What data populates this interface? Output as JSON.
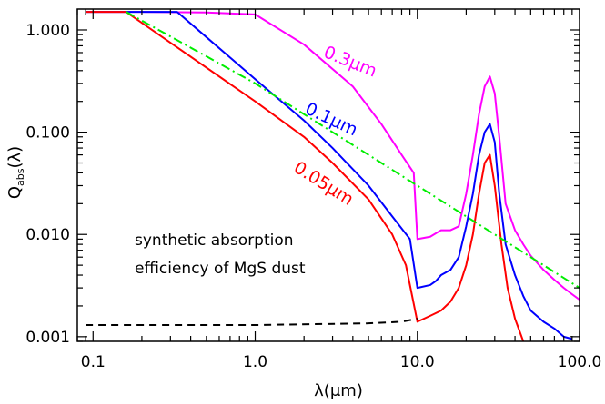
{
  "chart_data": {
    "type": "line",
    "title": "",
    "xlabel": "λ(μm)",
    "ylabel": "Q_abs(λ)",
    "ylabel_main": "Q",
    "ylabel_sub": "abs",
    "ylabel_rest": "(λ)",
    "xscale": "log",
    "yscale": "log",
    "xlim": [
      0.08,
      100
    ],
    "ylim": [
      0.0009,
      1.6
    ],
    "grid": false,
    "xticks": [
      {
        "value": 0.1,
        "label": "0.1"
      },
      {
        "value": 1,
        "label": "1.0"
      },
      {
        "value": 10,
        "label": "10.0"
      },
      {
        "value": 100,
        "label": "100.0"
      }
    ],
    "yticks": [
      {
        "value": 0.001,
        "label": "0.001"
      },
      {
        "value": 0.01,
        "label": "0.010"
      },
      {
        "value": 0.1,
        "label": "0.100"
      },
      {
        "value": 1,
        "label": "1.000"
      }
    ],
    "annotation": [
      "synthetic absorption",
      "efficiency of MgS dust"
    ],
    "series": [
      {
        "name": "0.3μm",
        "color": "#ff00ff",
        "style": "solid",
        "points": [
          [
            0.09,
            1.5
          ],
          [
            0.2,
            1.5
          ],
          [
            0.5,
            1.48
          ],
          [
            1.0,
            1.42
          ],
          [
            2.0,
            0.72
          ],
          [
            4.0,
            0.28
          ],
          [
            6.0,
            0.12
          ],
          [
            8.0,
            0.06
          ],
          [
            9.5,
            0.04
          ],
          [
            10.0,
            0.009
          ],
          [
            12.0,
            0.0095
          ],
          [
            14.0,
            0.011
          ],
          [
            16.0,
            0.011
          ],
          [
            18.0,
            0.012
          ],
          [
            20.0,
            0.025
          ],
          [
            22.0,
            0.06
          ],
          [
            24.0,
            0.15
          ],
          [
            26.0,
            0.28
          ],
          [
            28.0,
            0.35
          ],
          [
            30.0,
            0.24
          ],
          [
            32.0,
            0.09
          ],
          [
            35.0,
            0.02
          ],
          [
            40.0,
            0.011
          ],
          [
            45.0,
            0.008
          ],
          [
            50.0,
            0.0062
          ],
          [
            60.0,
            0.0045
          ],
          [
            70.0,
            0.0036
          ],
          [
            80.0,
            0.003
          ],
          [
            90.0,
            0.0026
          ],
          [
            100.0,
            0.0023
          ]
        ]
      },
      {
        "name": "0.1μm",
        "color": "#0000ff",
        "style": "solid",
        "points": [
          [
            0.09,
            1.5
          ],
          [
            0.2,
            1.5
          ],
          [
            0.33,
            1.5
          ],
          [
            0.5,
            0.85
          ],
          [
            1.0,
            0.33
          ],
          [
            2.0,
            0.13
          ],
          [
            3.0,
            0.07
          ],
          [
            5.0,
            0.03
          ],
          [
            7.0,
            0.015
          ],
          [
            9.0,
            0.009
          ],
          [
            10.0,
            0.003
          ],
          [
            12.0,
            0.0032
          ],
          [
            13.0,
            0.0035
          ],
          [
            14.0,
            0.004
          ],
          [
            16.0,
            0.0045
          ],
          [
            18.0,
            0.006
          ],
          [
            20.0,
            0.012
          ],
          [
            22.0,
            0.025
          ],
          [
            24.0,
            0.06
          ],
          [
            26.0,
            0.1
          ],
          [
            28.0,
            0.12
          ],
          [
            30.0,
            0.08
          ],
          [
            32.0,
            0.025
          ],
          [
            35.0,
            0.008
          ],
          [
            40.0,
            0.004
          ],
          [
            45.0,
            0.0025
          ],
          [
            50.0,
            0.0018
          ],
          [
            60.0,
            0.0014
          ],
          [
            70.0,
            0.0012
          ],
          [
            80.0,
            0.001
          ],
          [
            90.0,
            0.00095
          ]
        ]
      },
      {
        "name": "0.05μm",
        "color": "#ff0000",
        "style": "solid",
        "points": [
          [
            0.09,
            1.5
          ],
          [
            0.16,
            1.5
          ],
          [
            0.3,
            0.75
          ],
          [
            1.0,
            0.2
          ],
          [
            2.0,
            0.09
          ],
          [
            3.0,
            0.05
          ],
          [
            5.0,
            0.022
          ],
          [
            7.0,
            0.01
          ],
          [
            8.5,
            0.005
          ],
          [
            10.0,
            0.0014
          ],
          [
            12.0,
            0.0016
          ],
          [
            14.0,
            0.0018
          ],
          [
            16.0,
            0.0022
          ],
          [
            18.0,
            0.003
          ],
          [
            20.0,
            0.005
          ],
          [
            22.0,
            0.01
          ],
          [
            24.0,
            0.025
          ],
          [
            26.0,
            0.05
          ],
          [
            28.0,
            0.06
          ],
          [
            30.0,
            0.03
          ],
          [
            33.0,
            0.008
          ],
          [
            36.0,
            0.003
          ],
          [
            40.0,
            0.0015
          ],
          [
            45.0,
            0.0009
          ]
        ]
      },
      {
        "name": "",
        "color": "#00ee00",
        "style": "dash-dot",
        "points": [
          [
            0.16,
            1.5
          ],
          [
            1.0,
            0.3
          ],
          [
            10.0,
            0.03
          ],
          [
            100.0,
            0.003
          ]
        ]
      },
      {
        "name": "",
        "color": "#000000",
        "style": "dashed",
        "points": [
          [
            0.09,
            0.0013
          ],
          [
            1.0,
            0.0013
          ],
          [
            5.0,
            0.00135
          ],
          [
            8.0,
            0.0014
          ],
          [
            10.0,
            0.0015
          ]
        ]
      }
    ],
    "series_labels": [
      {
        "text": "0.3μm",
        "color": "#ff00ff",
        "x": 2.6,
        "y": 0.55,
        "rotate": 22
      },
      {
        "text": "0.1μm",
        "color": "#0000ff",
        "x": 2.0,
        "y": 0.155,
        "rotate": 25
      },
      {
        "text": "0.05μm",
        "color": "#ff0000",
        "x": 1.7,
        "y": 0.042,
        "rotate": 32
      }
    ]
  }
}
